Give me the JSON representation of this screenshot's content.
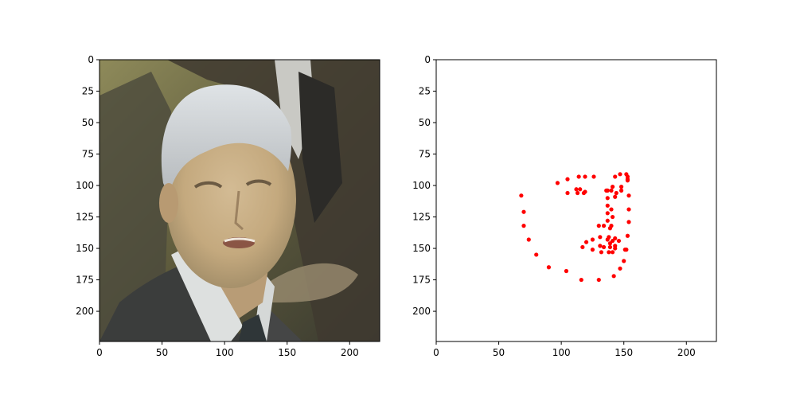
{
  "chart_data": [
    {
      "type": "image",
      "title": "",
      "xlabel": "",
      "ylabel": "",
      "xlim": [
        0,
        224
      ],
      "ylim": [
        224,
        0
      ],
      "x_ticks": [
        0,
        50,
        100,
        150,
        200
      ],
      "y_ticks": [
        0,
        25,
        50,
        75,
        100,
        125,
        150,
        175,
        200
      ],
      "image": "face-photo",
      "grid": false
    },
    {
      "type": "scatter",
      "title": "",
      "xlabel": "",
      "ylabel": "",
      "xlim": [
        0,
        224
      ],
      "ylim": [
        224,
        0
      ],
      "x_ticks": [
        0,
        50,
        100,
        150,
        200
      ],
      "y_ticks": [
        0,
        25,
        50,
        75,
        100,
        125,
        150,
        175,
        200
      ],
      "grid": false,
      "marker_color": "#ff0000",
      "points": [
        [
          68,
          108
        ],
        [
          70,
          121
        ],
        [
          70,
          132
        ],
        [
          74,
          143
        ],
        [
          80,
          155
        ],
        [
          90,
          165
        ],
        [
          104,
          168
        ],
        [
          116,
          175
        ],
        [
          130,
          175
        ],
        [
          142,
          172
        ],
        [
          147,
          166
        ],
        [
          150,
          160
        ],
        [
          152,
          151
        ],
        [
          153,
          140
        ],
        [
          154,
          129
        ],
        [
          154,
          119
        ],
        [
          154,
          108
        ],
        [
          153,
          96
        ],
        [
          97,
          98
        ],
        [
          105,
          95
        ],
        [
          114,
          93
        ],
        [
          119,
          93
        ],
        [
          126,
          93
        ],
        [
          143,
          93
        ],
        [
          147,
          91
        ],
        [
          152,
          91
        ],
        [
          153,
          93
        ],
        [
          153,
          95
        ],
        [
          137,
          104
        ],
        [
          137,
          110
        ],
        [
          137,
          116
        ],
        [
          137,
          122
        ],
        [
          137,
          128
        ],
        [
          125,
          143
        ],
        [
          131,
          141
        ],
        [
          137,
          143
        ],
        [
          141,
          144
        ],
        [
          143,
          142
        ],
        [
          105,
          106
        ],
        [
          112,
          103
        ],
        [
          115,
          103
        ],
        [
          118,
          106
        ],
        [
          113,
          106
        ],
        [
          119,
          105
        ],
        [
          136,
          104
        ],
        [
          141,
          101
        ],
        [
          148,
          101
        ],
        [
          148,
          104
        ],
        [
          144,
          106
        ],
        [
          140,
          104
        ],
        [
          117,
          149
        ],
        [
          120,
          145
        ],
        [
          130,
          132
        ],
        [
          134,
          132
        ],
        [
          140,
          132
        ],
        [
          146,
          144
        ],
        [
          151,
          151
        ],
        [
          139,
          146
        ],
        [
          131,
          148
        ],
        [
          134,
          149
        ],
        [
          139,
          149
        ],
        [
          143,
          150
        ],
        [
          143,
          148
        ],
        [
          125,
          151
        ],
        [
          132,
          153
        ],
        [
          138,
          153
        ],
        [
          141,
          153
        ],
        [
          138,
          141
        ],
        [
          139,
          134
        ],
        [
          141,
          125
        ],
        [
          140,
          119
        ],
        [
          143,
          109
        ]
      ]
    }
  ]
}
